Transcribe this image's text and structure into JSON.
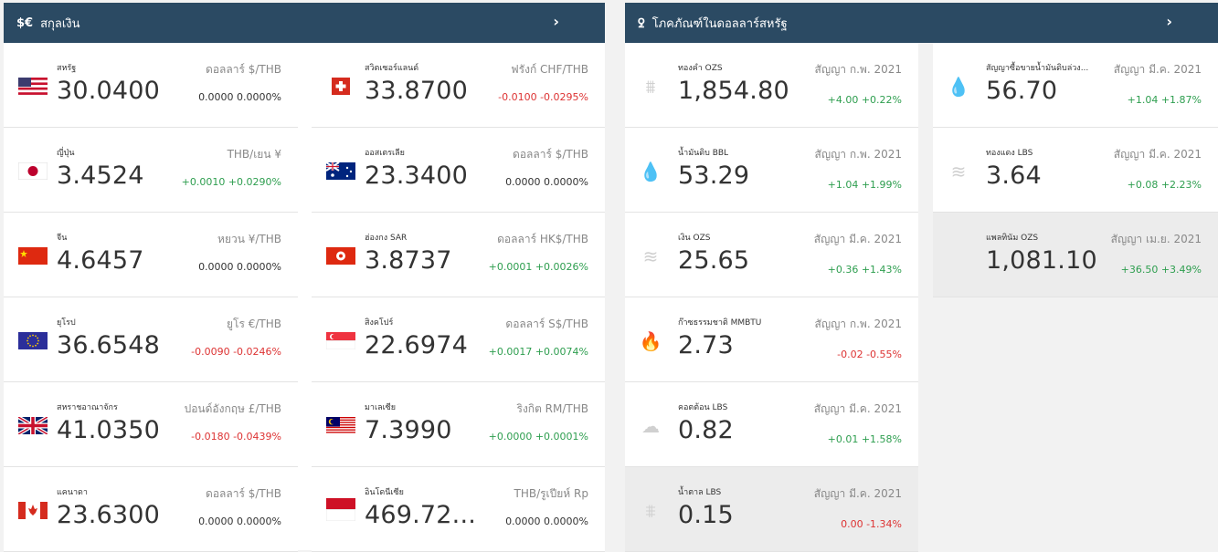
{
  "currency": {
    "icon": "$€",
    "title": "สกุลเงิน",
    "chevron": "›",
    "rows": [
      {
        "name": "สหรัฐ",
        "price": "30.0400",
        "unit": "ดอลลาร์ $/THB",
        "change": "0.0000 0.0000%",
        "dir": "flat",
        "flag": "us"
      },
      {
        "name": "สวิตเซอร์แลนด์",
        "price": "33.8700",
        "unit": "ฟรังก์ CHF/THB",
        "change": "-0.0100 -0.0295%",
        "dir": "down",
        "flag": "ch"
      },
      {
        "name": "ญี่ปุ่น",
        "price": "3.4524",
        "unit": "THB/เยน ¥",
        "change": "+0.0010 +0.0290%",
        "dir": "up",
        "flag": "jp"
      },
      {
        "name": "ออสเตรเลีย",
        "price": "23.3400",
        "unit": "ดอลลาร์ $/THB",
        "change": "0.0000 0.0000%",
        "dir": "flat",
        "flag": "au"
      },
      {
        "name": "จีน",
        "price": "4.6457",
        "unit": "หยวน ¥/THB",
        "change": "0.0000 0.0000%",
        "dir": "flat",
        "flag": "cn"
      },
      {
        "name": "ฮ่องกง SAR",
        "price": "3.8737",
        "unit": "ดอลลาร์ HK$/THB",
        "change": "+0.0001 +0.0026%",
        "dir": "up",
        "flag": "hk"
      },
      {
        "name": "ยุโรป",
        "price": "36.6548",
        "unit": "ยูโร €/THB",
        "change": "-0.0090 -0.0246%",
        "dir": "down",
        "flag": "eu"
      },
      {
        "name": "สิงคโปร์",
        "price": "22.6974",
        "unit": "ดอลลาร์ S$/THB",
        "change": "+0.0017 +0.0074%",
        "dir": "up",
        "flag": "sg"
      },
      {
        "name": "สหราชอาณาจักร",
        "price": "41.0350",
        "unit": "ปอนด์อังกฤษ £/THB",
        "change": "-0.0180 -0.0439%",
        "dir": "down",
        "flag": "gb"
      },
      {
        "name": "มาเลเซีย",
        "price": "7.3990",
        "unit": "ริงกิต RM/THB",
        "change": "+0.0000 +0.0001%",
        "dir": "up",
        "flag": "my"
      },
      {
        "name": "แคนาดา",
        "price": "23.6300",
        "unit": "ดอลลาร์ $/THB",
        "change": "0.0000 0.0000%",
        "dir": "flat",
        "flag": "ca"
      },
      {
        "name": "อินโดนีเซีย",
        "price": "469.72...",
        "unit": "THB/รูเปียห์ Rp",
        "change": "0.0000 0.0000%",
        "dir": "flat",
        "flag": "id"
      }
    ]
  },
  "commodity": {
    "icon": "ꝿ",
    "title": "โภคภัณฑ์ในดอลลาร์สหรัฐ",
    "chevron": "›",
    "rows": [
      {
        "name": "ทองคำ OZS",
        "price": "1,854.80",
        "unit": "สัญญา ก.พ. 2021",
        "change": "+4.00 +0.22%",
        "dir": "up",
        "icon": "gold-bars-icon",
        "glyph": "⩩",
        "hl": false
      },
      {
        "name": "สัญญาซื้อขายน้ำมันดิบล่วง...",
        "price": "56.70",
        "unit": "สัญญา มี.ค. 2021",
        "change": "+1.04 +1.87%",
        "dir": "up",
        "icon": "oil-drop-icon",
        "glyph": "💧",
        "hl": false
      },
      {
        "name": "น้ำมันดิบ BBL",
        "price": "53.29",
        "unit": "สัญญา ก.พ. 2021",
        "change": "+1.04 +1.99%",
        "dir": "up",
        "icon": "oil-drop-icon",
        "glyph": "💧",
        "hl": false
      },
      {
        "name": "ทองแดง LBS",
        "price": "3.64",
        "unit": "สัญญา มี.ค. 2021",
        "change": "+0.08 +2.23%",
        "dir": "up",
        "icon": "coin-stack-icon",
        "glyph": "≋",
        "hl": false
      },
      {
        "name": "เงิน OZS",
        "price": "25.65",
        "unit": "สัญญา มี.ค. 2021",
        "change": "+0.36 +1.43%",
        "dir": "up",
        "icon": "coin-stack-icon",
        "glyph": "≋",
        "hl": false
      },
      {
        "name": "แพลทินัม OZS",
        "price": "1,081.10",
        "unit": "สัญญา เม.ย. 2021",
        "change": "+36.50 +3.49%",
        "dir": "up",
        "icon": "",
        "glyph": "",
        "hl": true
      },
      {
        "name": "ก๊าซธรรมชาติ MMBTU",
        "price": "2.73",
        "unit": "สัญญา ก.พ. 2021",
        "change": "-0.02 -0.55%",
        "dir": "down",
        "icon": "flame-icon",
        "glyph": "🔥",
        "hl": false
      },
      {
        "name": "คอตต้อน LBS",
        "price": "0.82",
        "unit": "สัญญา มี.ค. 2021",
        "change": "+0.01 +1.58%",
        "dir": "up",
        "icon": "cotton-icon",
        "glyph": "☁",
        "hl": false
      },
      {
        "name": "น้ำตาล LBS",
        "price": "0.15",
        "unit": "สัญญา มี.ค. 2021",
        "change": "0.00 -1.34%",
        "dir": "down",
        "icon": "sugar-icon",
        "glyph": "⩨",
        "hl": true
      }
    ]
  }
}
